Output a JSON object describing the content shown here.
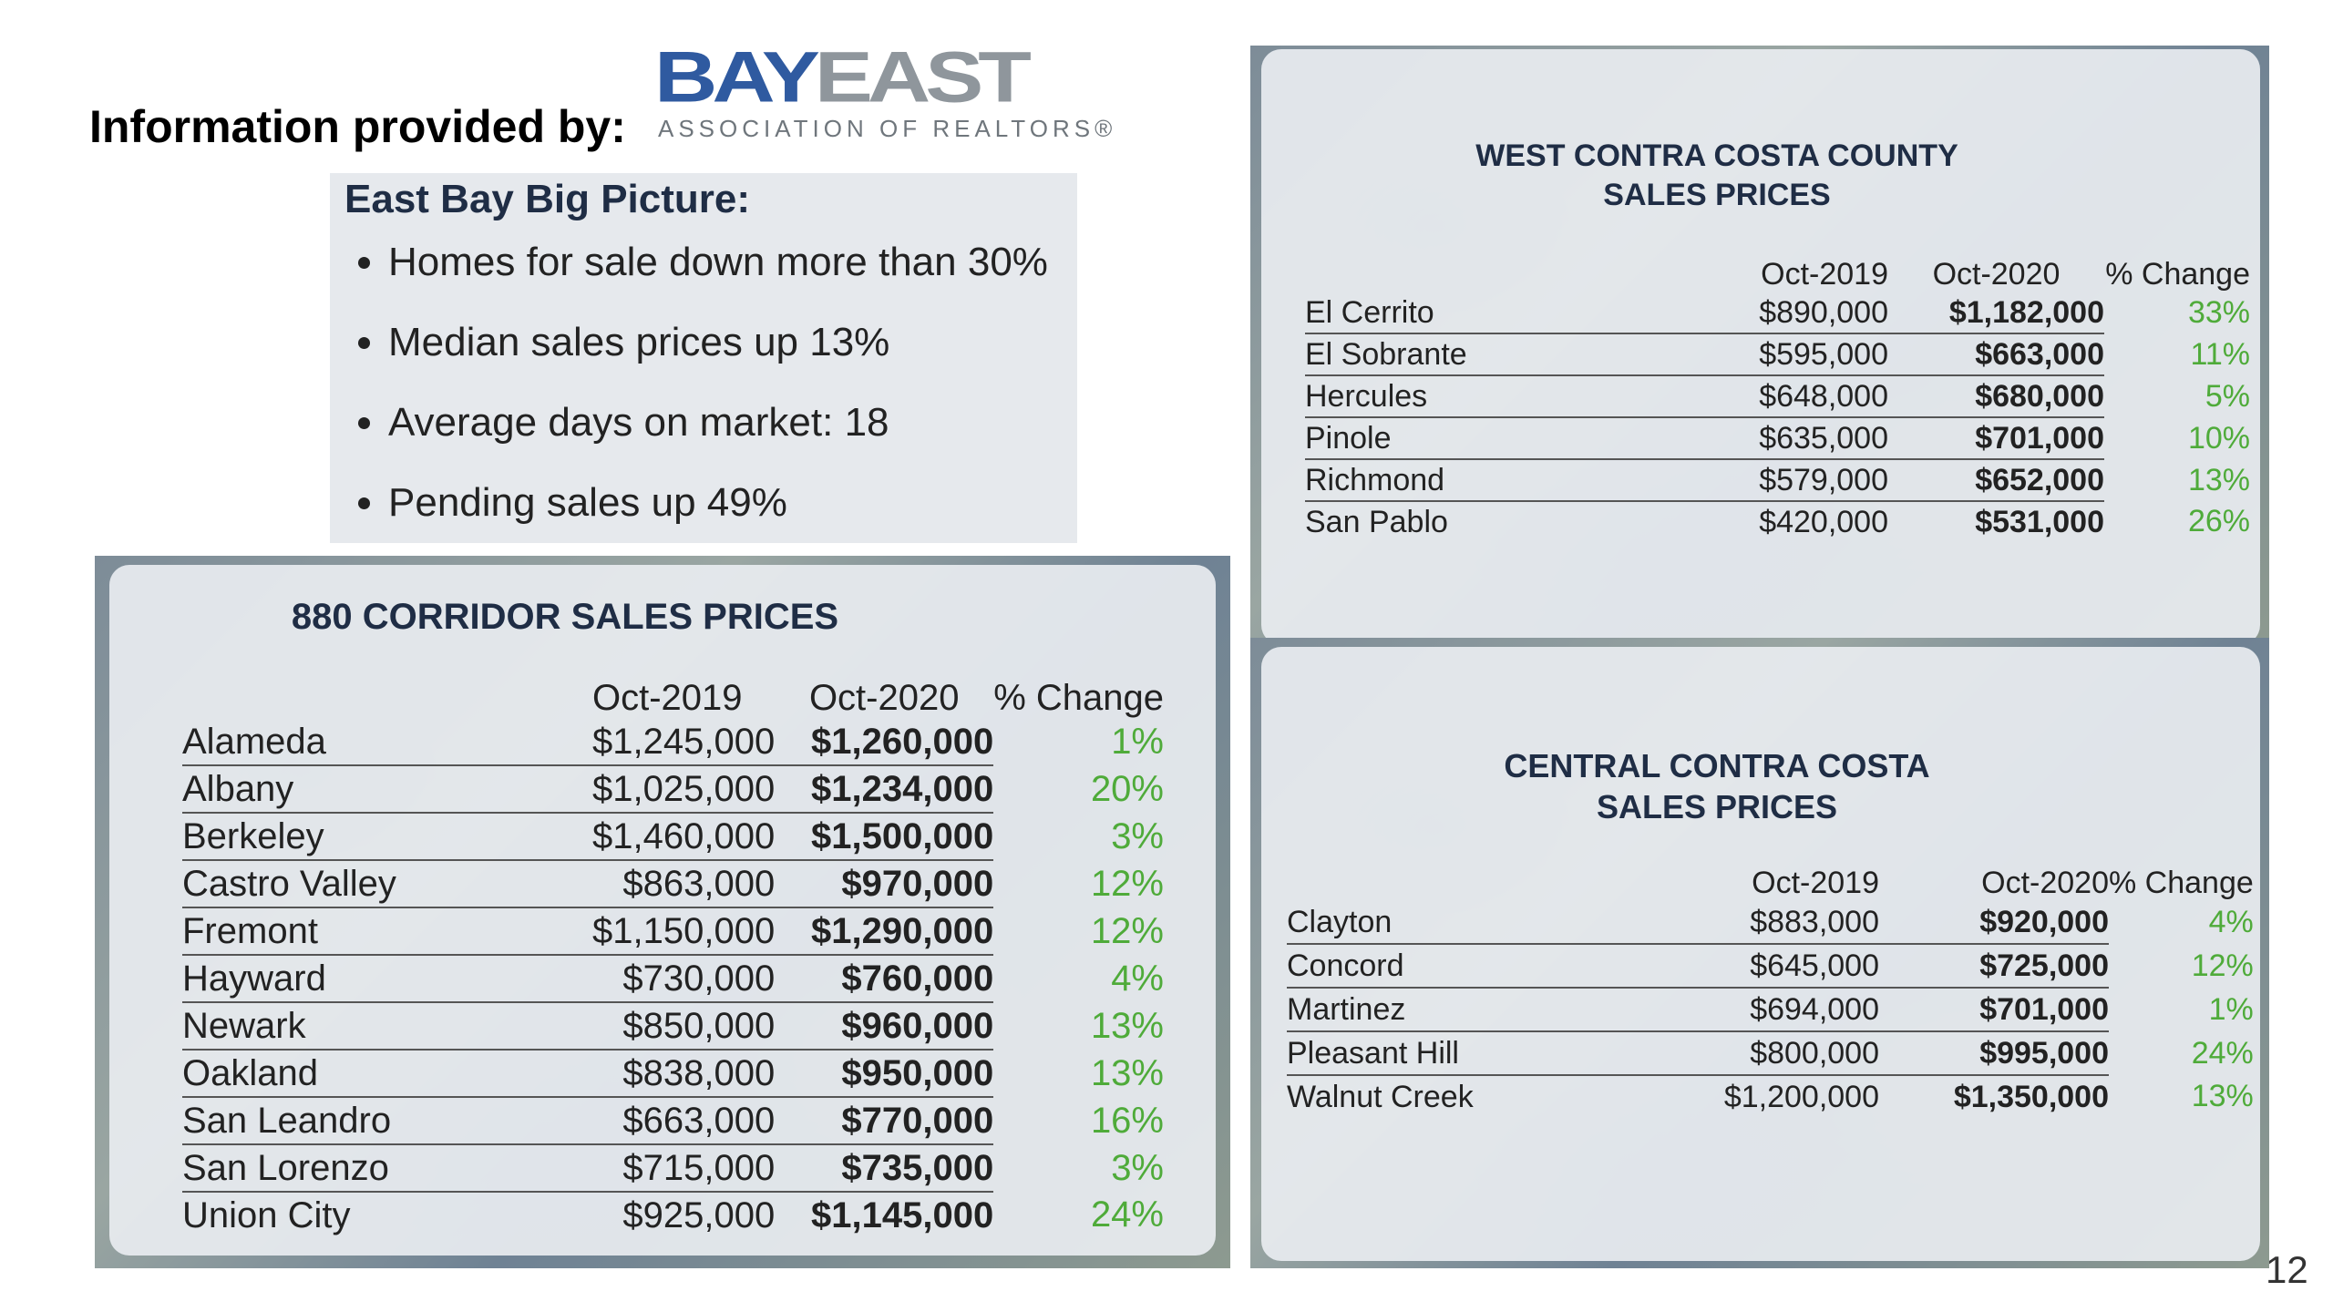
{
  "header": {
    "provided_by": "Information provided by:",
    "logo_word_left": "BAY",
    "logo_word_right": "EAST",
    "logo_sub": "ASSOCIATION OF REALTORS®"
  },
  "big_picture": {
    "title": "East Bay Big Picture:",
    "bullets": [
      "Homes for sale down more than 30%",
      "Median sales prices up 13%",
      "Average days on market: 18",
      "Pending sales up 49%"
    ]
  },
  "corridor_880": {
    "title": "880 CORRIDOR SALES PRICES",
    "headers": [
      "Oct-2019",
      "Oct-2020",
      "% Change"
    ],
    "rows": [
      {
        "city": "Alameda",
        "oct2019": "$1,245,000",
        "oct2020": "$1,260,000",
        "change": "1%"
      },
      {
        "city": "Albany",
        "oct2019": "$1,025,000",
        "oct2020": "$1,234,000",
        "change": "20%"
      },
      {
        "city": "Berkeley",
        "oct2019": "$1,460,000",
        "oct2020": "$1,500,000",
        "change": "3%"
      },
      {
        "city": "Castro Valley",
        "oct2019": "$863,000",
        "oct2020": "$970,000",
        "change": "12%"
      },
      {
        "city": "Fremont",
        "oct2019": "$1,150,000",
        "oct2020": "$1,290,000",
        "change": "12%"
      },
      {
        "city": "Hayward",
        "oct2019": "$730,000",
        "oct2020": "$760,000",
        "change": "4%"
      },
      {
        "city": "Newark",
        "oct2019": "$850,000",
        "oct2020": "$960,000",
        "change": "13%"
      },
      {
        "city": "Oakland",
        "oct2019": "$838,000",
        "oct2020": "$950,000",
        "change": "13%"
      },
      {
        "city": "San Leandro",
        "oct2019": "$663,000",
        "oct2020": "$770,000",
        "change": "16%"
      },
      {
        "city": "San Lorenzo",
        "oct2019": "$715,000",
        "oct2020": "$735,000",
        "change": "3%"
      },
      {
        "city": "Union City",
        "oct2019": "$925,000",
        "oct2020": "$1,145,000",
        "change": "24%"
      }
    ]
  },
  "west_contra_costa": {
    "title_line1": "WEST CONTRA COSTA COUNTY",
    "title_line2": "SALES PRICES",
    "headers": [
      "Oct-2019",
      "Oct-2020",
      "% Change"
    ],
    "rows": [
      {
        "city": "El Cerrito",
        "oct2019": "$890,000",
        "oct2020": "$1,182,000",
        "change": "33%"
      },
      {
        "city": "El Sobrante",
        "oct2019": "$595,000",
        "oct2020": "$663,000",
        "change": "11%"
      },
      {
        "city": "Hercules",
        "oct2019": "$648,000",
        "oct2020": "$680,000",
        "change": "5%"
      },
      {
        "city": "Pinole",
        "oct2019": "$635,000",
        "oct2020": "$701,000",
        "change": "10%"
      },
      {
        "city": "Richmond",
        "oct2019": "$579,000",
        "oct2020": "$652,000",
        "change": "13%"
      },
      {
        "city": "San Pablo",
        "oct2019": "$420,000",
        "oct2020": "$531,000",
        "change": "26%"
      }
    ]
  },
  "central_contra_costa": {
    "title_line1": "CENTRAL CONTRA COSTA",
    "title_line2": "SALES PRICES",
    "headers": [
      "Oct-2019",
      "Oct-2020",
      "% Change"
    ],
    "rows": [
      {
        "city": "Clayton",
        "oct2019": "$883,000",
        "oct2020": "$920,000",
        "change": "4%"
      },
      {
        "city": "Concord",
        "oct2019": "$645,000",
        "oct2020": "$725,000",
        "change": "12%"
      },
      {
        "city": "Martinez",
        "oct2019": "$694,000",
        "oct2020": "$701,000",
        "change": "1%"
      },
      {
        "city": "Pleasant Hill",
        "oct2019": "$800,000",
        "oct2020": "$995,000",
        "change": "24%"
      },
      {
        "city": "Walnut Creek",
        "oct2019": "$1,200,000",
        "oct2020": "$1,350,000",
        "change": "13%"
      }
    ]
  },
  "page_number": "12",
  "colors": {
    "title_navy": "#1f2d45",
    "change_green": "#4fab3a",
    "logo_blue": "#2f5aa0",
    "logo_gray": "#8f969c"
  }
}
